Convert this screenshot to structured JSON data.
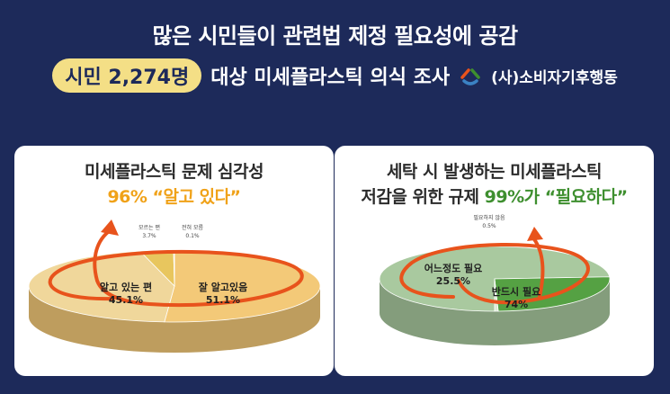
{
  "header": {
    "headline": "많은 시민들이 관련법 제정 필요성에 공감",
    "survey_pill": "시민 2,274명",
    "survey_text": "대상 미세플라스틱 의식 조사",
    "org": "(사)소비자기후행동"
  },
  "colors": {
    "background": "#1d2a5a",
    "pill": "#f4df86",
    "orange": "#f0a219",
    "arrow": "#e8531c",
    "green": "#3e8f2f"
  },
  "chart_data": [
    {
      "type": "pie",
      "title_line1": "미세플라스틱 문제 심각성",
      "title_line2": "96% “알고 있다”",
      "slices": [
        {
          "label": "잘 알고있음",
          "value": 51.1,
          "value_text": "51.1%",
          "color": "#f3c978"
        },
        {
          "label": "알고 있는 편",
          "value": 45.1,
          "value_text": "45.1%",
          "color": "#f0d79b"
        },
        {
          "label": "모르는 편",
          "value": 3.7,
          "value_text": "3.7%",
          "color": "#e8c65e"
        },
        {
          "label": "전혀 모름",
          "value": 0.1,
          "value_text": "0.1%",
          "color": "#caa94d"
        }
      ]
    },
    {
      "type": "pie",
      "title_line1": "세탁 시 발생하는 미세플라스틱",
      "title_line2_plain": "저감을 위한 규제 ",
      "title_line2_accent": "99%가 “필요하다”",
      "slices": [
        {
          "label": "반드시 필요",
          "value": 74,
          "value_text": "74%",
          "color": "#a9c99f"
        },
        {
          "label": "어느정도 필요",
          "value": 25.5,
          "value_text": "25.5%",
          "color": "#55a143"
        },
        {
          "label": "필요하지 않음",
          "value": 0.5,
          "value_text": "0.5%",
          "color": "#ddebd6"
        }
      ]
    }
  ]
}
